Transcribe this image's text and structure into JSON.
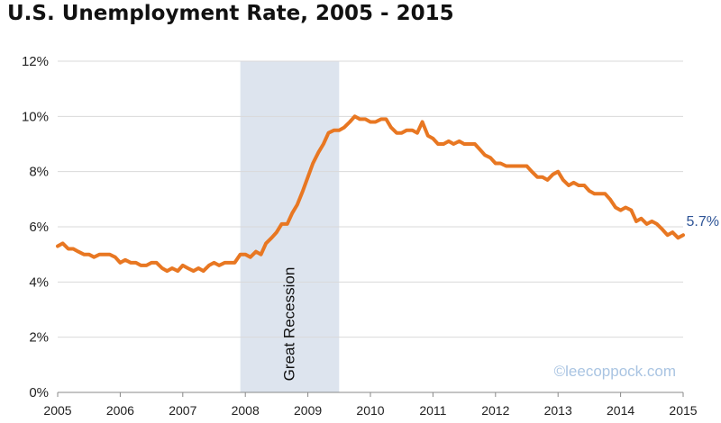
{
  "chart_data": {
    "type": "line",
    "title": "U.S. Unemployment Rate, 2005 - 2015",
    "xlabel": "",
    "ylabel": "",
    "x_range": [
      2005.0,
      2015.0
    ],
    "ylim": [
      0,
      12
    ],
    "yticks": [
      "0%",
      "2%",
      "4%",
      "6%",
      "8%",
      "10%",
      "12%"
    ],
    "ytick_values": [
      0,
      2,
      4,
      6,
      8,
      10,
      12
    ],
    "xticks": [
      "2005",
      "2006",
      "2007",
      "2008",
      "2009",
      "2010",
      "2011",
      "2012",
      "2013",
      "2014",
      "2015"
    ],
    "xtick_values": [
      2005,
      2006,
      2007,
      2008,
      2009,
      2010,
      2011,
      2012,
      2013,
      2014,
      2015
    ],
    "grid": "horizontal",
    "line_color": "#e87722",
    "recession_color": "#dde4ee",
    "recession": {
      "label": "Great Recession",
      "start": 2007.92,
      "end": 2009.5
    },
    "end_label": "5.7%",
    "watermark": "©leecoppock.com",
    "series": [
      {
        "x": [
          2005.0,
          2005.08,
          2005.17,
          2005.25,
          2005.33,
          2005.42,
          2005.5,
          2005.58,
          2005.67,
          2005.75,
          2005.83,
          2005.92,
          2006.0,
          2006.08,
          2006.17,
          2006.25,
          2006.33,
          2006.42,
          2006.5,
          2006.58,
          2006.67,
          2006.75,
          2006.83,
          2006.92,
          2007.0,
          2007.08,
          2007.17,
          2007.25,
          2007.33,
          2007.42,
          2007.5,
          2007.58,
          2007.67,
          2007.75,
          2007.83,
          2007.92,
          2008.0,
          2008.08,
          2008.17,
          2008.25,
          2008.33,
          2008.42,
          2008.5,
          2008.58,
          2008.67,
          2008.75,
          2008.83,
          2008.92,
          2009.0,
          2009.08,
          2009.17,
          2009.25,
          2009.33,
          2009.42,
          2009.5,
          2009.58,
          2009.67,
          2009.75,
          2009.83,
          2009.92,
          2010.0,
          2010.08,
          2010.17,
          2010.25,
          2010.33,
          2010.42,
          2010.5,
          2010.58,
          2010.67,
          2010.75,
          2010.83,
          2010.92,
          2011.0,
          2011.08,
          2011.17,
          2011.25,
          2011.33,
          2011.42,
          2011.5,
          2011.58,
          2011.67,
          2011.75,
          2011.83,
          2011.92,
          2012.0,
          2012.08,
          2012.17,
          2012.25,
          2012.33,
          2012.42,
          2012.5,
          2012.58,
          2012.67,
          2012.75,
          2012.83,
          2012.92,
          2013.0,
          2013.08,
          2013.17,
          2013.25,
          2013.33,
          2013.42,
          2013.5,
          2013.58,
          2013.67,
          2013.75,
          2013.83,
          2013.92,
          2014.0,
          2014.08,
          2014.17,
          2014.25,
          2014.33,
          2014.42,
          2014.5,
          2014.58,
          2014.67,
          2014.75,
          2014.83,
          2014.92,
          2015.0
        ],
        "values": [
          5.3,
          5.4,
          5.2,
          5.2,
          5.1,
          5.0,
          5.0,
          4.9,
          5.0,
          5.0,
          5.0,
          4.9,
          4.7,
          4.8,
          4.7,
          4.7,
          4.6,
          4.6,
          4.7,
          4.7,
          4.5,
          4.4,
          4.5,
          4.4,
          4.6,
          4.5,
          4.4,
          4.5,
          4.4,
          4.6,
          4.7,
          4.6,
          4.7,
          4.7,
          4.7,
          5.0,
          5.0,
          4.9,
          5.1,
          5.0,
          5.4,
          5.6,
          5.8,
          6.1,
          6.1,
          6.5,
          6.8,
          7.3,
          7.8,
          8.3,
          8.7,
          9.0,
          9.4,
          9.5,
          9.5,
          9.6,
          9.8,
          10.0,
          9.9,
          9.9,
          9.8,
          9.8,
          9.9,
          9.9,
          9.6,
          9.4,
          9.4,
          9.5,
          9.5,
          9.4,
          9.8,
          9.3,
          9.2,
          9.0,
          9.0,
          9.1,
          9.0,
          9.1,
          9.0,
          9.0,
          9.0,
          8.8,
          8.6,
          8.5,
          8.3,
          8.3,
          8.2,
          8.2,
          8.2,
          8.2,
          8.2,
          8.0,
          7.8,
          7.8,
          7.7,
          7.9,
          8.0,
          7.7,
          7.5,
          7.6,
          7.5,
          7.5,
          7.3,
          7.2,
          7.2,
          7.2,
          7.0,
          6.7,
          6.6,
          6.7,
          6.6,
          6.2,
          6.3,
          6.1,
          6.2,
          6.1,
          5.9,
          5.7,
          5.8,
          5.6,
          5.7
        ]
      }
    ]
  }
}
